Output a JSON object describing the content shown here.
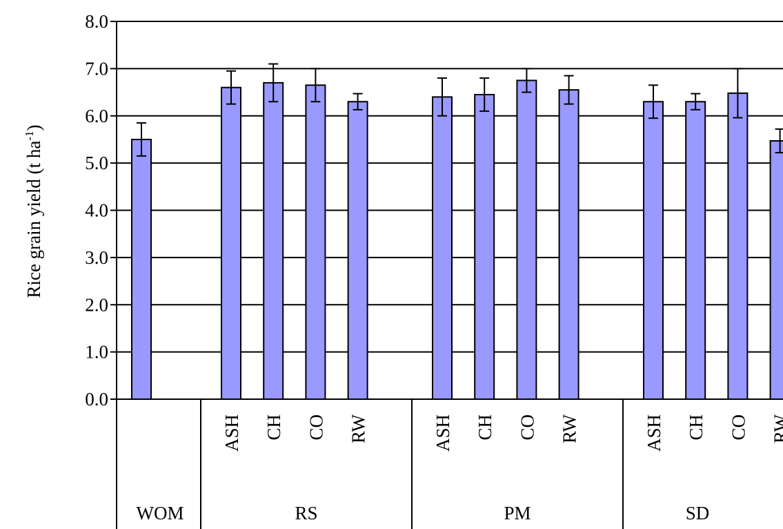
{
  "chart_data": {
    "type": "bar",
    "ylabel_main": "Rice grain yield (t ha",
    "ylabel_sup": "-1",
    "ylabel_close": ")",
    "ylim": [
      0,
      8
    ],
    "yticks": [
      "0.0",
      "1.0",
      "2.0",
      "3.0",
      "4.0",
      "5.0",
      "6.0",
      "7.0",
      "8.0"
    ],
    "grid": true,
    "bar_color": "#9999ff",
    "groups": [
      {
        "label": "WOM",
        "bars": [
          {
            "label": "",
            "value": 5.5,
            "error": 0.35
          }
        ]
      },
      {
        "label": "RS",
        "bars": [
          {
            "label": "ASH",
            "value": 6.6,
            "error": 0.35
          },
          {
            "label": "CH",
            "value": 6.7,
            "error": 0.4
          },
          {
            "label": "CO",
            "value": 6.65,
            "error": 0.35
          },
          {
            "label": "RW",
            "value": 6.3,
            "error": 0.17
          }
        ]
      },
      {
        "label": "PM",
        "bars": [
          {
            "label": "ASH",
            "value": 6.4,
            "error": 0.4
          },
          {
            "label": "CH",
            "value": 6.45,
            "error": 0.35
          },
          {
            "label": "CO",
            "value": 6.75,
            "error": 0.25
          },
          {
            "label": "RW",
            "value": 6.55,
            "error": 0.3
          }
        ]
      },
      {
        "label": "SD",
        "bars": [
          {
            "label": "ASH",
            "value": 6.3,
            "error": 0.35
          },
          {
            "label": "CH",
            "value": 6.3,
            "error": 0.17
          },
          {
            "label": "CO",
            "value": 6.48,
            "error": 0.52
          },
          {
            "label": "RW",
            "value": 5.47,
            "error": 0.25
          }
        ]
      }
    ]
  }
}
